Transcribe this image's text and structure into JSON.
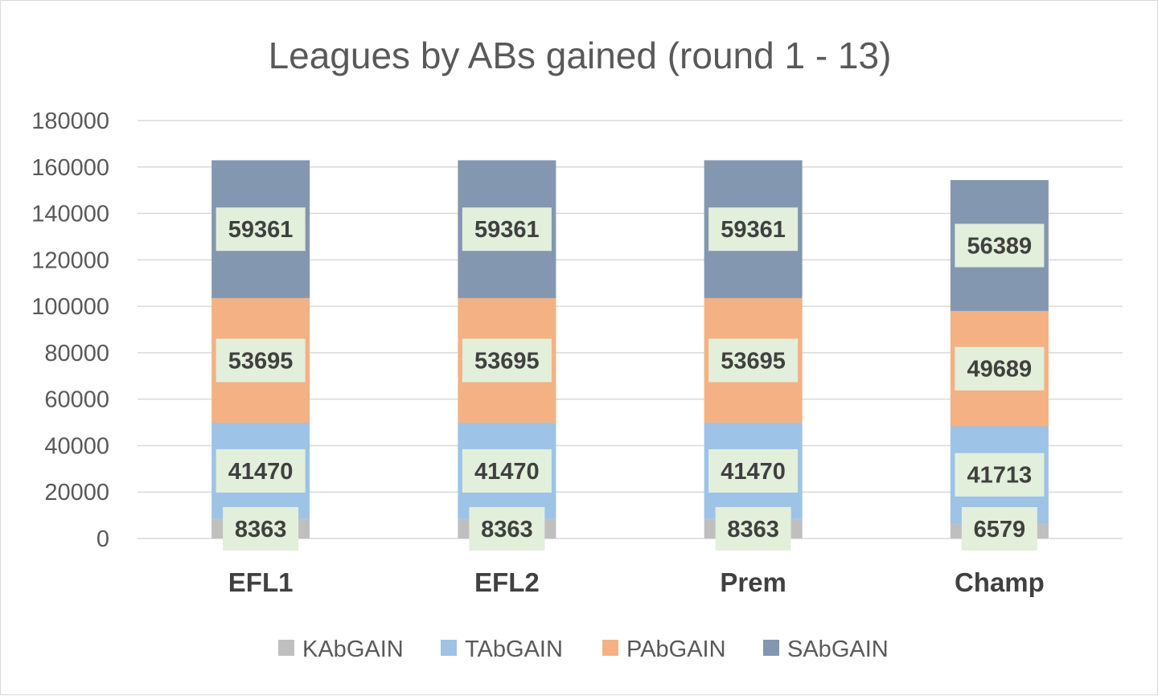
{
  "chart_data": {
    "type": "bar",
    "stacked": true,
    "title": "Leagues by ABs gained (round 1 - 13)",
    "xlabel": "",
    "ylabel": "",
    "ylim": [
      0,
      180000
    ],
    "yticks": [
      0,
      20000,
      40000,
      60000,
      80000,
      100000,
      120000,
      140000,
      160000,
      180000
    ],
    "grid": true,
    "legend_position": "bottom",
    "categories": [
      "EFL1",
      "EFL2",
      "Prem",
      "Champ"
    ],
    "series": [
      {
        "name": "KAbGAIN",
        "color": "#bfbfbf",
        "values": [
          8363,
          8363,
          8363,
          6579
        ]
      },
      {
        "name": "TAbGAIN",
        "color": "#9dc3e6",
        "values": [
          41470,
          41470,
          41470,
          41713
        ]
      },
      {
        "name": "PAbGAIN",
        "color": "#f4b183",
        "values": [
          53695,
          53695,
          53695,
          49689
        ]
      },
      {
        "name": "SAbGAIN",
        "color": "#8497b0",
        "values": [
          59361,
          59361,
          59361,
          56389
        ]
      }
    ],
    "data_label_background": "#e2efda"
  }
}
